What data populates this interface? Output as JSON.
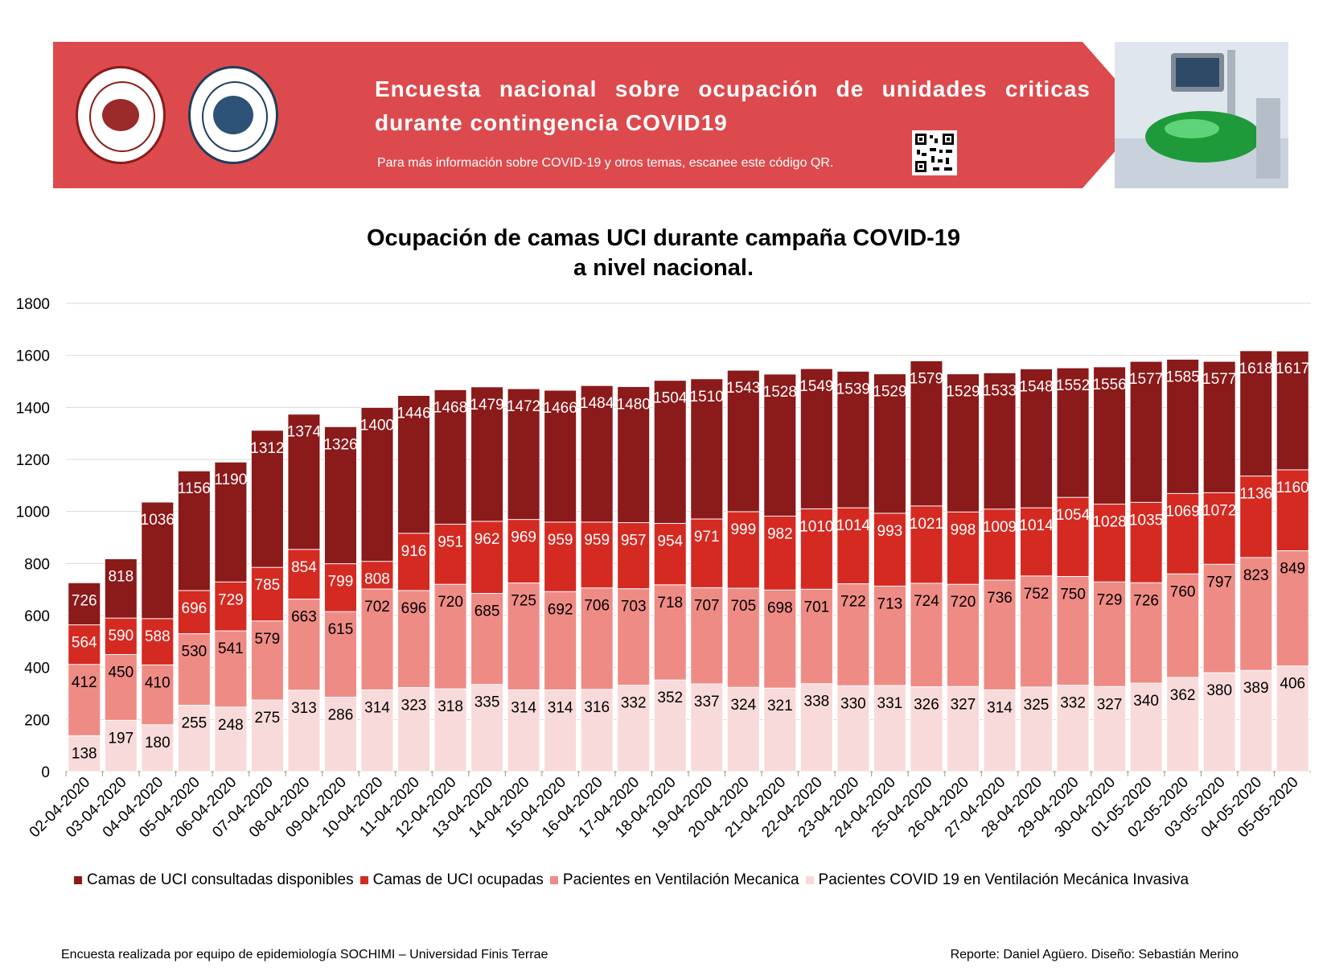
{
  "banner": {
    "title": "Encuesta nacional sobre ocupación de unidades criticas durante contingencia COVID19",
    "subtitle": "Para más información sobre COVID-19 y otros temas, escanee este código QR.",
    "color": "#dc4a4d",
    "logos": [
      {
        "name": "sochimi-logo",
        "text": "SOCIEDAD CHILENA DE MEDICINA INTENSIVA"
      },
      {
        "name": "finis-terrae-logo",
        "text": "UNIVERSIDAD FINIS TERRAE · VINCE IN BONO MALUM"
      }
    ]
  },
  "footer": {
    "left": "Encuesta realizada por equipo de epidemiología SOCHIMI – Universidad Finis Terrae",
    "right": "Reporte: Daniel Agüero. Diseño: Sebastián Merino"
  },
  "chart_data": {
    "type": "bar",
    "title": "Ocupación de camas UCI durante campaña COVID-19",
    "subtitle": "a nivel nacional.",
    "ylim": [
      0,
      1800
    ],
    "yticks": [
      0,
      200,
      400,
      600,
      800,
      1000,
      1200,
      1400,
      1600,
      1800
    ],
    "grid": true,
    "legend_position": "bottom",
    "categories": [
      "02-04-2020",
      "03-04-2020",
      "04-04-2020",
      "05-04-2020",
      "06-04-2020",
      "07-04-2020",
      "08-04-2020",
      "09-04-2020",
      "10-04-2020",
      "11-04-2020",
      "12-04-2020",
      "13-04-2020",
      "14-04-2020",
      "15-04-2020",
      "16-04-2020",
      "17-04-2020",
      "18-04-2020",
      "19-04-2020",
      "20-04-2020",
      "21-04-2020",
      "22-04-2020",
      "23-04-2020",
      "24-04-2020",
      "25-04-2020",
      "26-04-2020",
      "27-04-2020",
      "28-04-2020",
      "29-04-2020",
      "30-04-2020",
      "01-05-2020",
      "02-05-2020",
      "03-05-2020",
      "04-05-2020",
      "05-05-2020"
    ],
    "series": [
      {
        "name": "Camas de UCI consultadas disponibles",
        "color": "#8b1a1a",
        "values": [
          726,
          818,
          1036,
          1156,
          1190,
          1312,
          1374,
          1326,
          1400,
          1446,
          1468,
          1479,
          1472,
          1466,
          1484,
          1480,
          1504,
          1510,
          1543,
          1528,
          1549,
          1539,
          1529,
          1579,
          1529,
          1533,
          1548,
          1552,
          1556,
          1577,
          1585,
          1577,
          1618,
          1617
        ]
      },
      {
        "name": "Camas de UCI ocupadas",
        "color": "#d42a22",
        "values": [
          564,
          590,
          588,
          696,
          729,
          785,
          854,
          799,
          808,
          916,
          951,
          962,
          969,
          959,
          959,
          957,
          954,
          971,
          999,
          982,
          1010,
          1014,
          993,
          1021,
          998,
          1009,
          1014,
          1054,
          1028,
          1035,
          1069,
          1072,
          1136,
          1160
        ]
      },
      {
        "name": "Pacientes en Ventilación Mecanica",
        "color": "#ef8b85",
        "values": [
          412,
          450,
          410,
          530,
          541,
          579,
          663,
          615,
          702,
          696,
          720,
          685,
          725,
          692,
          706,
          703,
          718,
          707,
          705,
          698,
          701,
          722,
          713,
          724,
          720,
          736,
          752,
          750,
          729,
          726,
          760,
          797,
          823,
          849
        ]
      },
      {
        "name": "Pacientes COVID 19 en Ventilación Mecánica Invasiva",
        "color": "#f9dada",
        "values": [
          138,
          197,
          180,
          255,
          248,
          275,
          313,
          286,
          314,
          323,
          318,
          335,
          314,
          314,
          316,
          332,
          352,
          337,
          324,
          321,
          338,
          330,
          331,
          326,
          327,
          314,
          325,
          332,
          327,
          340,
          362,
          380,
          389,
          406
        ]
      }
    ]
  }
}
